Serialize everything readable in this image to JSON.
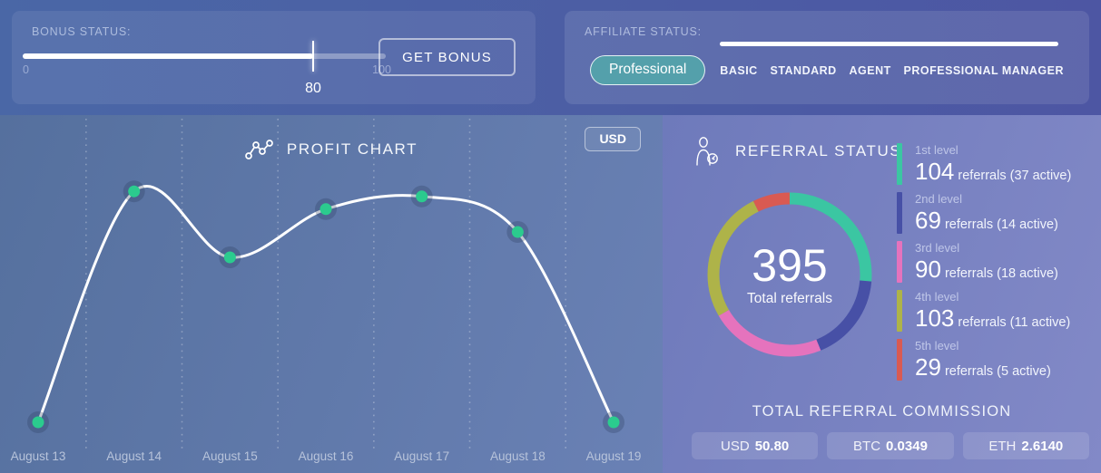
{
  "bonus": {
    "label": "BONUS STATUS:",
    "slider": {
      "min": "0",
      "max": "100",
      "value": "80"
    },
    "button": "GET BONUS"
  },
  "affiliate": {
    "label": "AFFILIATE STATUS:",
    "current": "Professional",
    "current_color": "#54a0ab",
    "levels": [
      "BASIC",
      "STANDARD",
      "AGENT",
      "PROFESSIONAL MANAGER"
    ]
  },
  "profit": {
    "title": "PROFIT CHART",
    "currency": "USD"
  },
  "chart_data": {
    "type": "line",
    "title": "PROFIT CHART",
    "x": [
      "August 13",
      "August 14",
      "August 15",
      "August 16",
      "August 17",
      "August 18",
      "August 19"
    ],
    "values": [
      5,
      96,
      70,
      89,
      94,
      80,
      5
    ],
    "ylim": [
      0,
      100
    ],
    "ylabel": "",
    "xlabel": "",
    "grid": "vertical-dashed",
    "legend_position": "none",
    "line_color": "#ffffff",
    "point_color": "#2bcb8e"
  },
  "referral": {
    "title": "REFERRAL STATUS",
    "total": "395",
    "total_label": "Total referrals",
    "levels": [
      {
        "label": "1st level",
        "count": "104",
        "detail": "referrals (37 active)",
        "value": 104,
        "color": "#3bc6a2"
      },
      {
        "label": "2nd level",
        "count": "69",
        "detail": "referrals (14 active)",
        "value": 69,
        "color": "#4750a6"
      },
      {
        "label": "3rd level",
        "count": "90",
        "detail": "referrals (18 active)",
        "value": 90,
        "color": "#e573bd"
      },
      {
        "label": "4th level",
        "count": "103",
        "detail": "referrals (11 active)",
        "value": 103,
        "color": "#aeb349"
      },
      {
        "label": "5th level",
        "count": "29",
        "detail": "referrals (5 active)",
        "value": 29,
        "color": "#d95a52"
      }
    ],
    "commission": {
      "title": "TOTAL REFERRAL COMMISSION",
      "items": [
        {
          "currency": "USD",
          "amount": "50.80"
        },
        {
          "currency": "BTC",
          "amount": "0.0349"
        },
        {
          "currency": "ETH",
          "amount": "2.6140"
        }
      ]
    }
  }
}
